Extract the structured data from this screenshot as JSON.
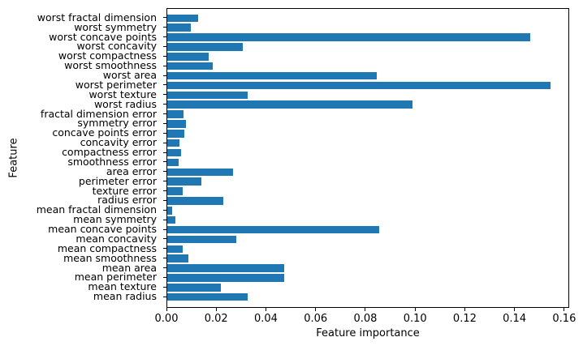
{
  "chart_data": {
    "type": "bar",
    "orientation": "horizontal",
    "title": "",
    "xlabel": "Feature importance",
    "ylabel": "Feature",
    "xlim": [
      0,
      0.162
    ],
    "grid": false,
    "legend": false,
    "bar_color": "#1f77b4",
    "category_order": "top-to-bottom-as-displayed",
    "categories": [
      "worst fractal dimension",
      "worst symmetry",
      "worst concave points",
      "worst concavity",
      "worst compactness",
      "worst smoothness",
      "worst area",
      "worst perimeter",
      "worst texture",
      "worst radius",
      "fractal dimension error",
      "symmetry error",
      "concave points error",
      "concavity error",
      "compactness error",
      "smoothness error",
      "area error",
      "perimeter error",
      "texture error",
      "radius error",
      "mean fractal dimension",
      "mean symmetry",
      "mean concave points",
      "mean concavity",
      "mean compactness",
      "mean smoothness",
      "mean area",
      "mean perimeter",
      "mean texture",
      "mean radius"
    ],
    "values": [
      0.0123,
      0.0093,
      0.1461,
      0.0302,
      0.0168,
      0.0182,
      0.0842,
      0.154,
      0.0323,
      0.0987,
      0.0064,
      0.0076,
      0.007,
      0.005,
      0.0056,
      0.0045,
      0.0266,
      0.0136,
      0.0061,
      0.0224,
      0.0019,
      0.0032,
      0.0851,
      0.0277,
      0.0061,
      0.0084,
      0.0469,
      0.047,
      0.0214,
      0.0322
    ],
    "xticks": [
      0.0,
      0.02,
      0.04,
      0.06,
      0.08,
      0.1,
      0.12,
      0.14,
      0.16
    ],
    "xtick_labels": [
      "0.00",
      "0.02",
      "0.04",
      "0.06",
      "0.08",
      "0.10",
      "0.12",
      "0.14",
      "0.16"
    ]
  },
  "colors": {
    "bar": "#1f77b4",
    "axis": "#000000",
    "background": "#ffffff"
  }
}
